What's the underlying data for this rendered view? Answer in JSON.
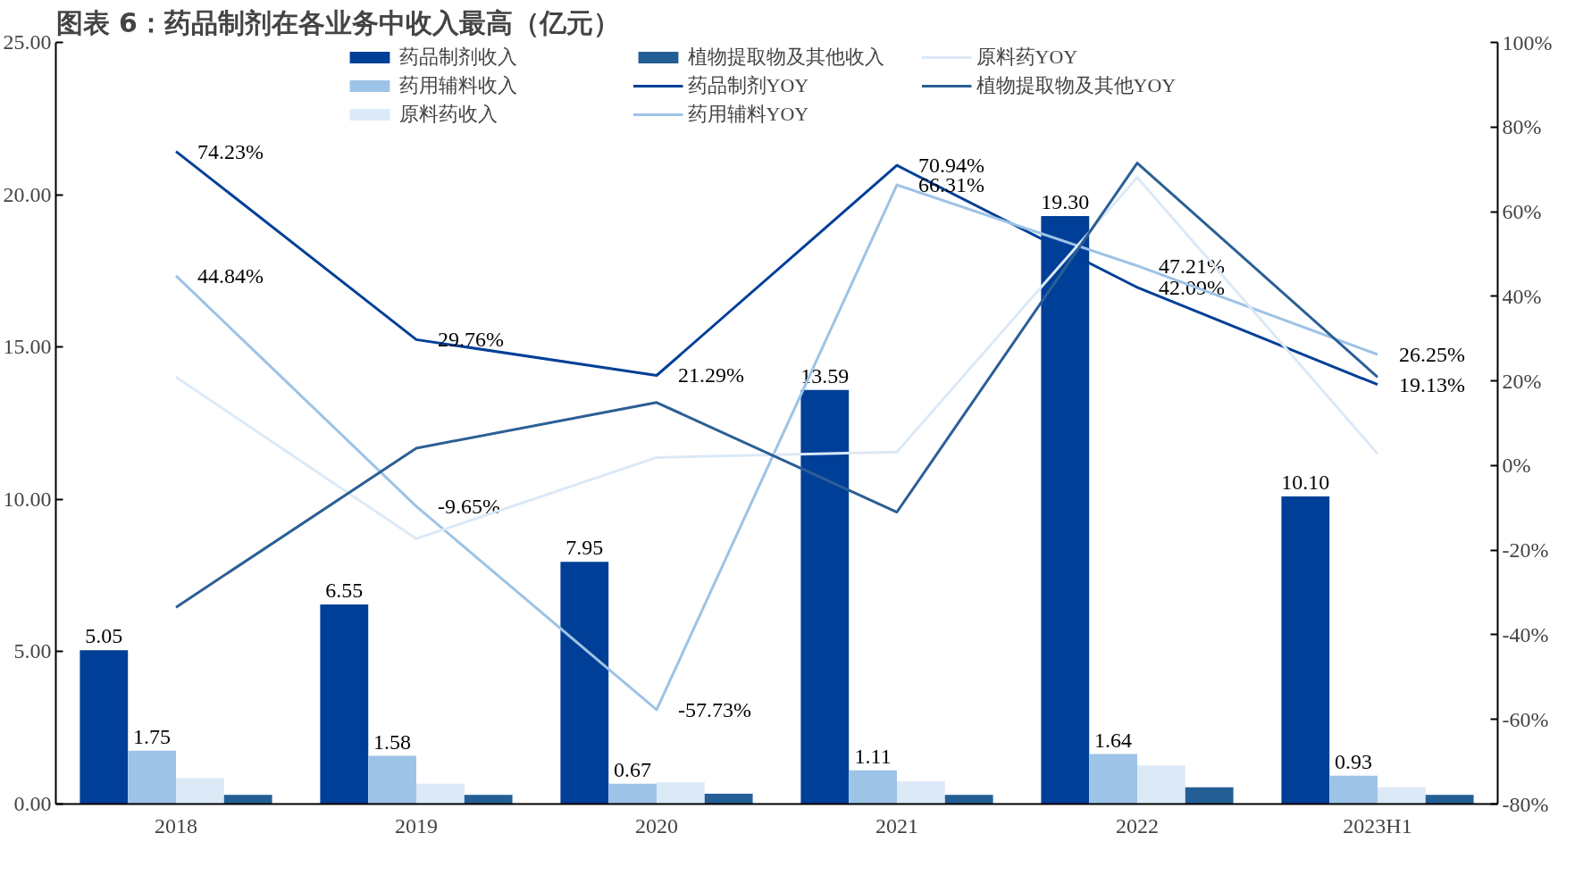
{
  "chart_data": {
    "type": "bar",
    "title": "图表 6：药品制剂在各业务中收入最高（亿元）",
    "categories": [
      "2018",
      "2019",
      "2020",
      "2021",
      "2022",
      "2023H1"
    ],
    "ylim": [
      0,
      25
    ],
    "yticks": [
      {
        "value": 0,
        "label": "0.00"
      },
      {
        "value": 5,
        "label": "5.00"
      },
      {
        "value": 10,
        "label": "10.00"
      },
      {
        "value": 15,
        "label": "15.00"
      },
      {
        "value": 20,
        "label": "20.00"
      },
      {
        "value": 25,
        "label": "25.00"
      }
    ],
    "y2lim": [
      -80,
      100
    ],
    "y2ticks": [
      {
        "value": -80,
        "label": "-80%"
      },
      {
        "value": -60,
        "label": "-60%"
      },
      {
        "value": -40,
        "label": "-40%"
      },
      {
        "value": -20,
        "label": "-20%"
      },
      {
        "value": 0,
        "label": "0%"
      },
      {
        "value": 20,
        "label": "20%"
      },
      {
        "value": 40,
        "label": "40%"
      },
      {
        "value": 60,
        "label": "60%"
      },
      {
        "value": 80,
        "label": "80%"
      },
      {
        "value": 100,
        "label": "100%"
      }
    ],
    "grid": false,
    "legend": "top",
    "series": [
      {
        "name": "药品制剂收入",
        "color": "#003f97",
        "values": [
          5.05,
          6.55,
          7.95,
          13.59,
          19.3,
          10.1
        ],
        "value_labels": [
          "5.05",
          "6.55",
          "7.95",
          "13.59",
          "19.30",
          "10.10"
        ]
      },
      {
        "name": "药用辅料收入",
        "color": "#9dc3e6",
        "values": [
          1.75,
          1.58,
          0.67,
          1.11,
          1.64,
          0.93
        ],
        "value_labels": [
          "1.75",
          "1.58",
          "0.67",
          "1.11",
          "1.64",
          "0.93"
        ]
      },
      {
        "name": "原料药收入",
        "color": "#dce9f6",
        "values": [
          0.85,
          0.67,
          0.72,
          0.75,
          1.27,
          0.55
        ]
      },
      {
        "name": "植物提取物及其他收入",
        "color": "#235e94",
        "values": [
          0.3,
          0.3,
          0.34,
          0.3,
          0.55,
          0.3
        ]
      },
      {
        "name": "药品制剂YOY",
        "type": "line",
        "axis": "y2",
        "color": "#003f97",
        "values": [
          74.23,
          29.76,
          21.29,
          70.94,
          42.09,
          19.13
        ],
        "value_labels": [
          "74.23%",
          "29.76%",
          "21.29%",
          "70.94%",
          "42.09%",
          "19.13%"
        ]
      },
      {
        "name": "药用辅料YOY",
        "type": "line",
        "axis": "y2",
        "color": "#9dc3e6",
        "values": [
          44.84,
          -9.65,
          -57.73,
          66.31,
          47.21,
          26.25
        ],
        "value_labels": [
          "44.84%",
          "-9.65%",
          "-57.73%",
          "66.31%",
          "47.21%",
          "26.25%"
        ]
      },
      {
        "name": "原料药YOY",
        "type": "line",
        "axis": "y2",
        "color": "#dce9f6",
        "values": [
          20.9,
          -17.3,
          1.9,
          3.2,
          68.1,
          2.8
        ]
      },
      {
        "name": "植物提取物及其他YOY",
        "type": "line",
        "axis": "y2",
        "color": "#2b5f95",
        "values": [
          -33.5,
          4.1,
          14.9,
          -11.0,
          71.5,
          20.9
        ]
      }
    ]
  }
}
